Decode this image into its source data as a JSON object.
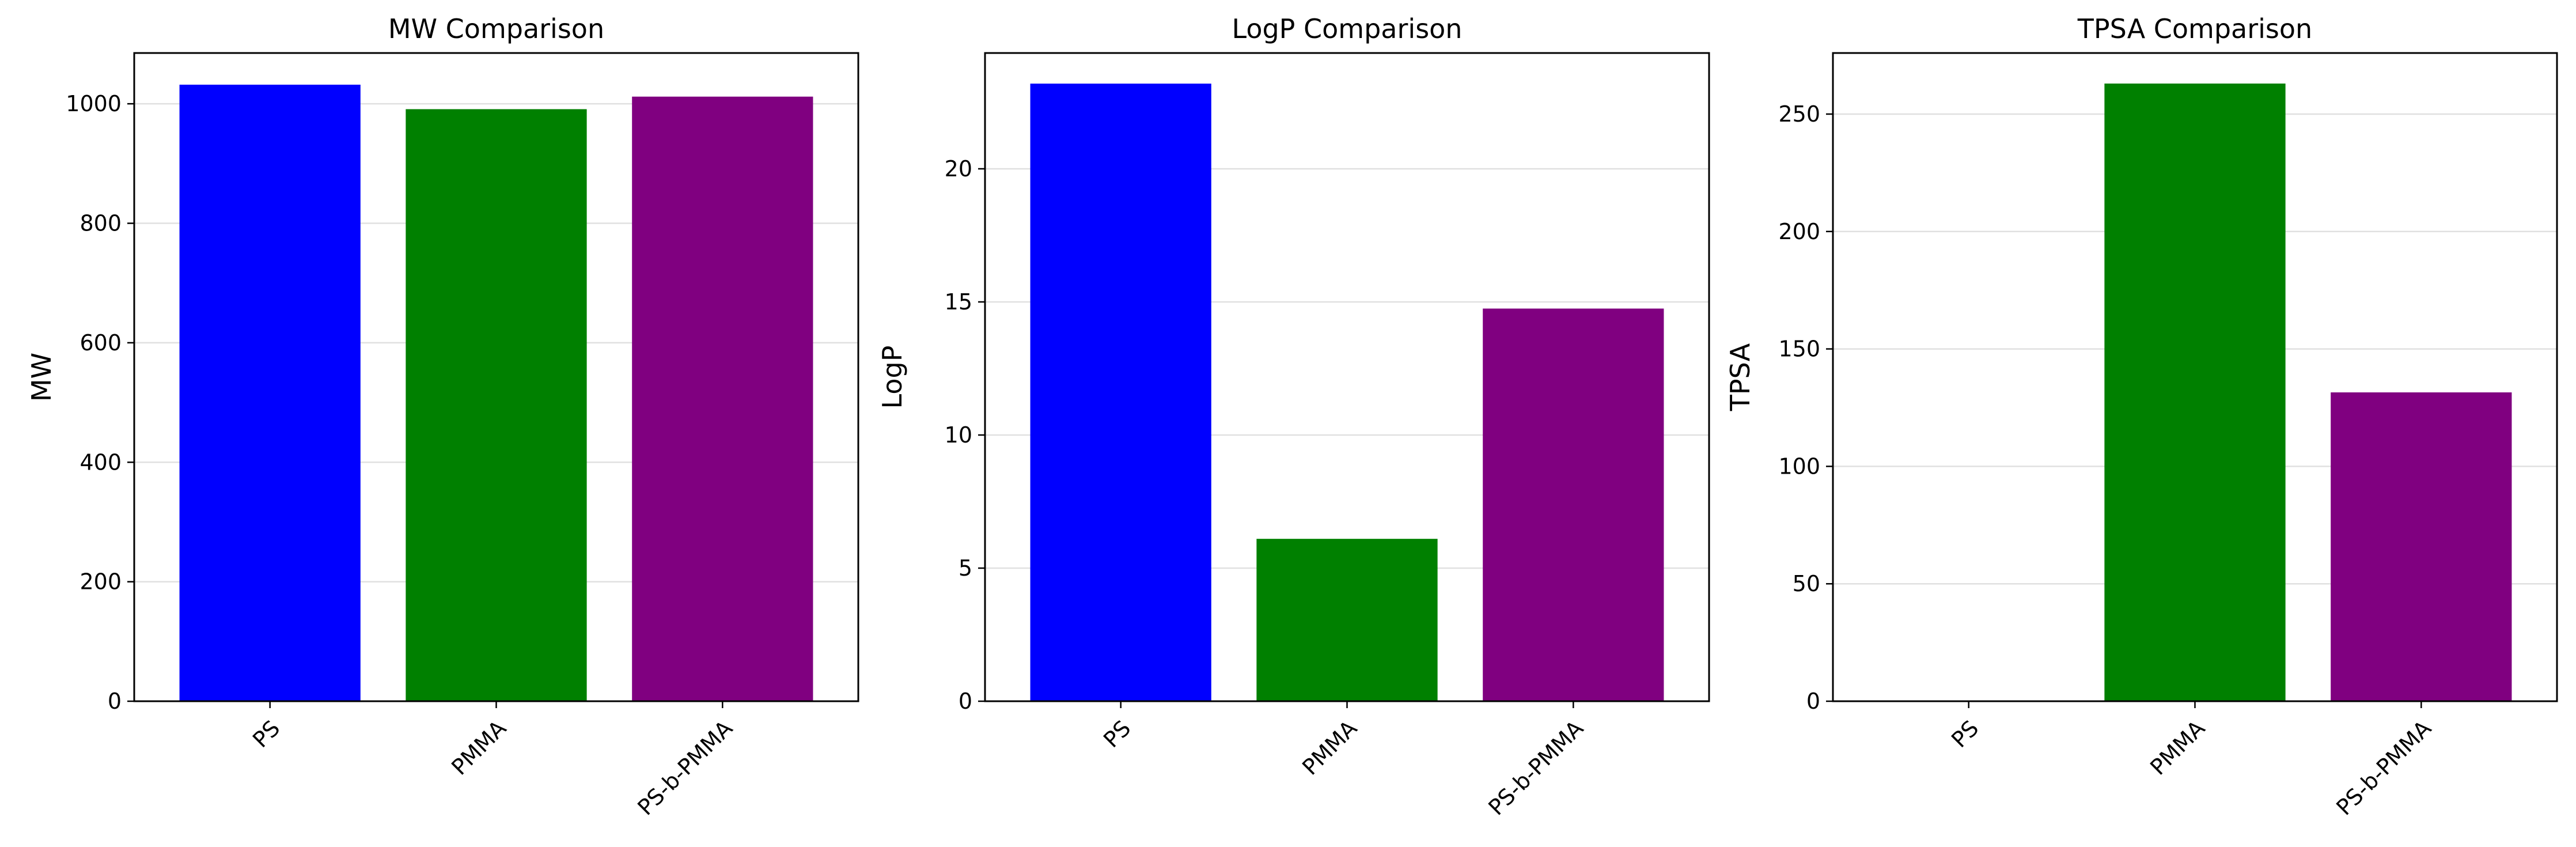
{
  "chart_data": [
    {
      "type": "bar",
      "title": "MW Comparison",
      "xlabel": "",
      "ylabel": "MW",
      "categories": [
        "PS",
        "PMMA",
        "PS-b-PMMA"
      ],
      "values": [
        1032,
        991,
        1012
      ],
      "colors": [
        "#0000ff",
        "#008000",
        "#800080"
      ],
      "ylim": [
        0,
        1085
      ],
      "yticks": [
        0,
        200,
        400,
        600,
        800,
        1000
      ],
      "grid": "y",
      "legend": "none"
    },
    {
      "type": "bar",
      "title": "LogP Comparison",
      "xlabel": "",
      "ylabel": "LogP",
      "categories": [
        "PS",
        "PMMA",
        "PS-b-PMMA"
      ],
      "values": [
        23.2,
        6.1,
        14.75
      ],
      "colors": [
        "#0000ff",
        "#008000",
        "#800080"
      ],
      "ylim": [
        0,
        24.35
      ],
      "yticks": [
        0,
        5,
        10,
        15,
        20
      ],
      "grid": "y",
      "legend": "none"
    },
    {
      "type": "bar",
      "title": "TPSA Comparison",
      "xlabel": "",
      "ylabel": "TPSA",
      "categories": [
        "PS",
        "PMMA",
        "PS-b-PMMA"
      ],
      "values": [
        0,
        263,
        131.5
      ],
      "colors": [
        "#0000ff",
        "#008000",
        "#800080"
      ],
      "ylim": [
        0,
        276
      ],
      "yticks": [
        0,
        50,
        100,
        150,
        200,
        250
      ],
      "grid": "y",
      "legend": "none"
    }
  ]
}
